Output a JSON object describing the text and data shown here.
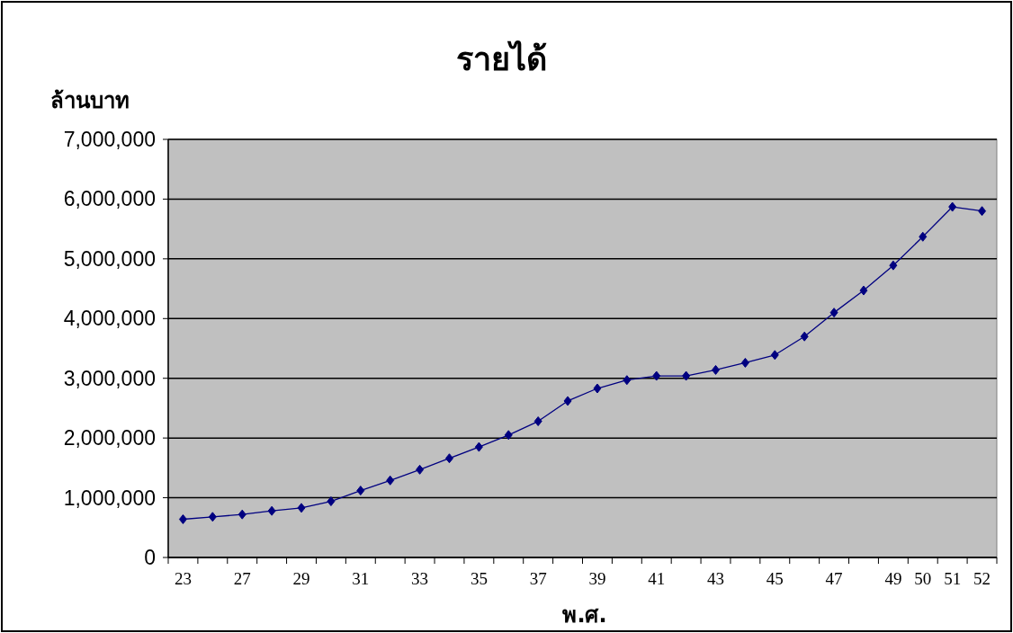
{
  "chart_data": {
    "type": "line",
    "title": "รายได้",
    "ylabel": "ล้านบาท",
    "xlabel": "พ.ศ.",
    "categories": [
      "23",
      null,
      "27",
      null,
      "29",
      null,
      "31",
      null,
      "33",
      null,
      "35",
      null,
      "37",
      null,
      "39",
      null,
      "41",
      null,
      "43",
      null,
      "45",
      null,
      "47",
      null,
      "49",
      "50",
      "51",
      "52"
    ],
    "series": [
      {
        "color": "#000080",
        "values": [
          640000,
          680000,
          720000,
          780000,
          830000,
          940000,
          1120000,
          1290000,
          1470000,
          1660000,
          1850000,
          2050000,
          2280000,
          2620000,
          2830000,
          2970000,
          3040000,
          3040000,
          3140000,
          3260000,
          3390000,
          3700000,
          4100000,
          4470000,
          4890000,
          5370000,
          5870000,
          5800000
        ]
      }
    ],
    "ylim": [
      0,
      7000000
    ],
    "yticks": [
      {
        "value": 0,
        "label": "0"
      },
      {
        "value": 1000000,
        "label": "1,000,000"
      },
      {
        "value": 2000000,
        "label": "2,000,000"
      },
      {
        "value": 3000000,
        "label": "3,000,000"
      },
      {
        "value": 4000000,
        "label": "4,000,000"
      },
      {
        "value": 5000000,
        "label": "5,000,000"
      },
      {
        "value": 6000000,
        "label": "6,000,000"
      },
      {
        "value": 7000000,
        "label": "7,000,000"
      }
    ],
    "grid": "y",
    "marker": "diamond",
    "line_style": "solid"
  }
}
